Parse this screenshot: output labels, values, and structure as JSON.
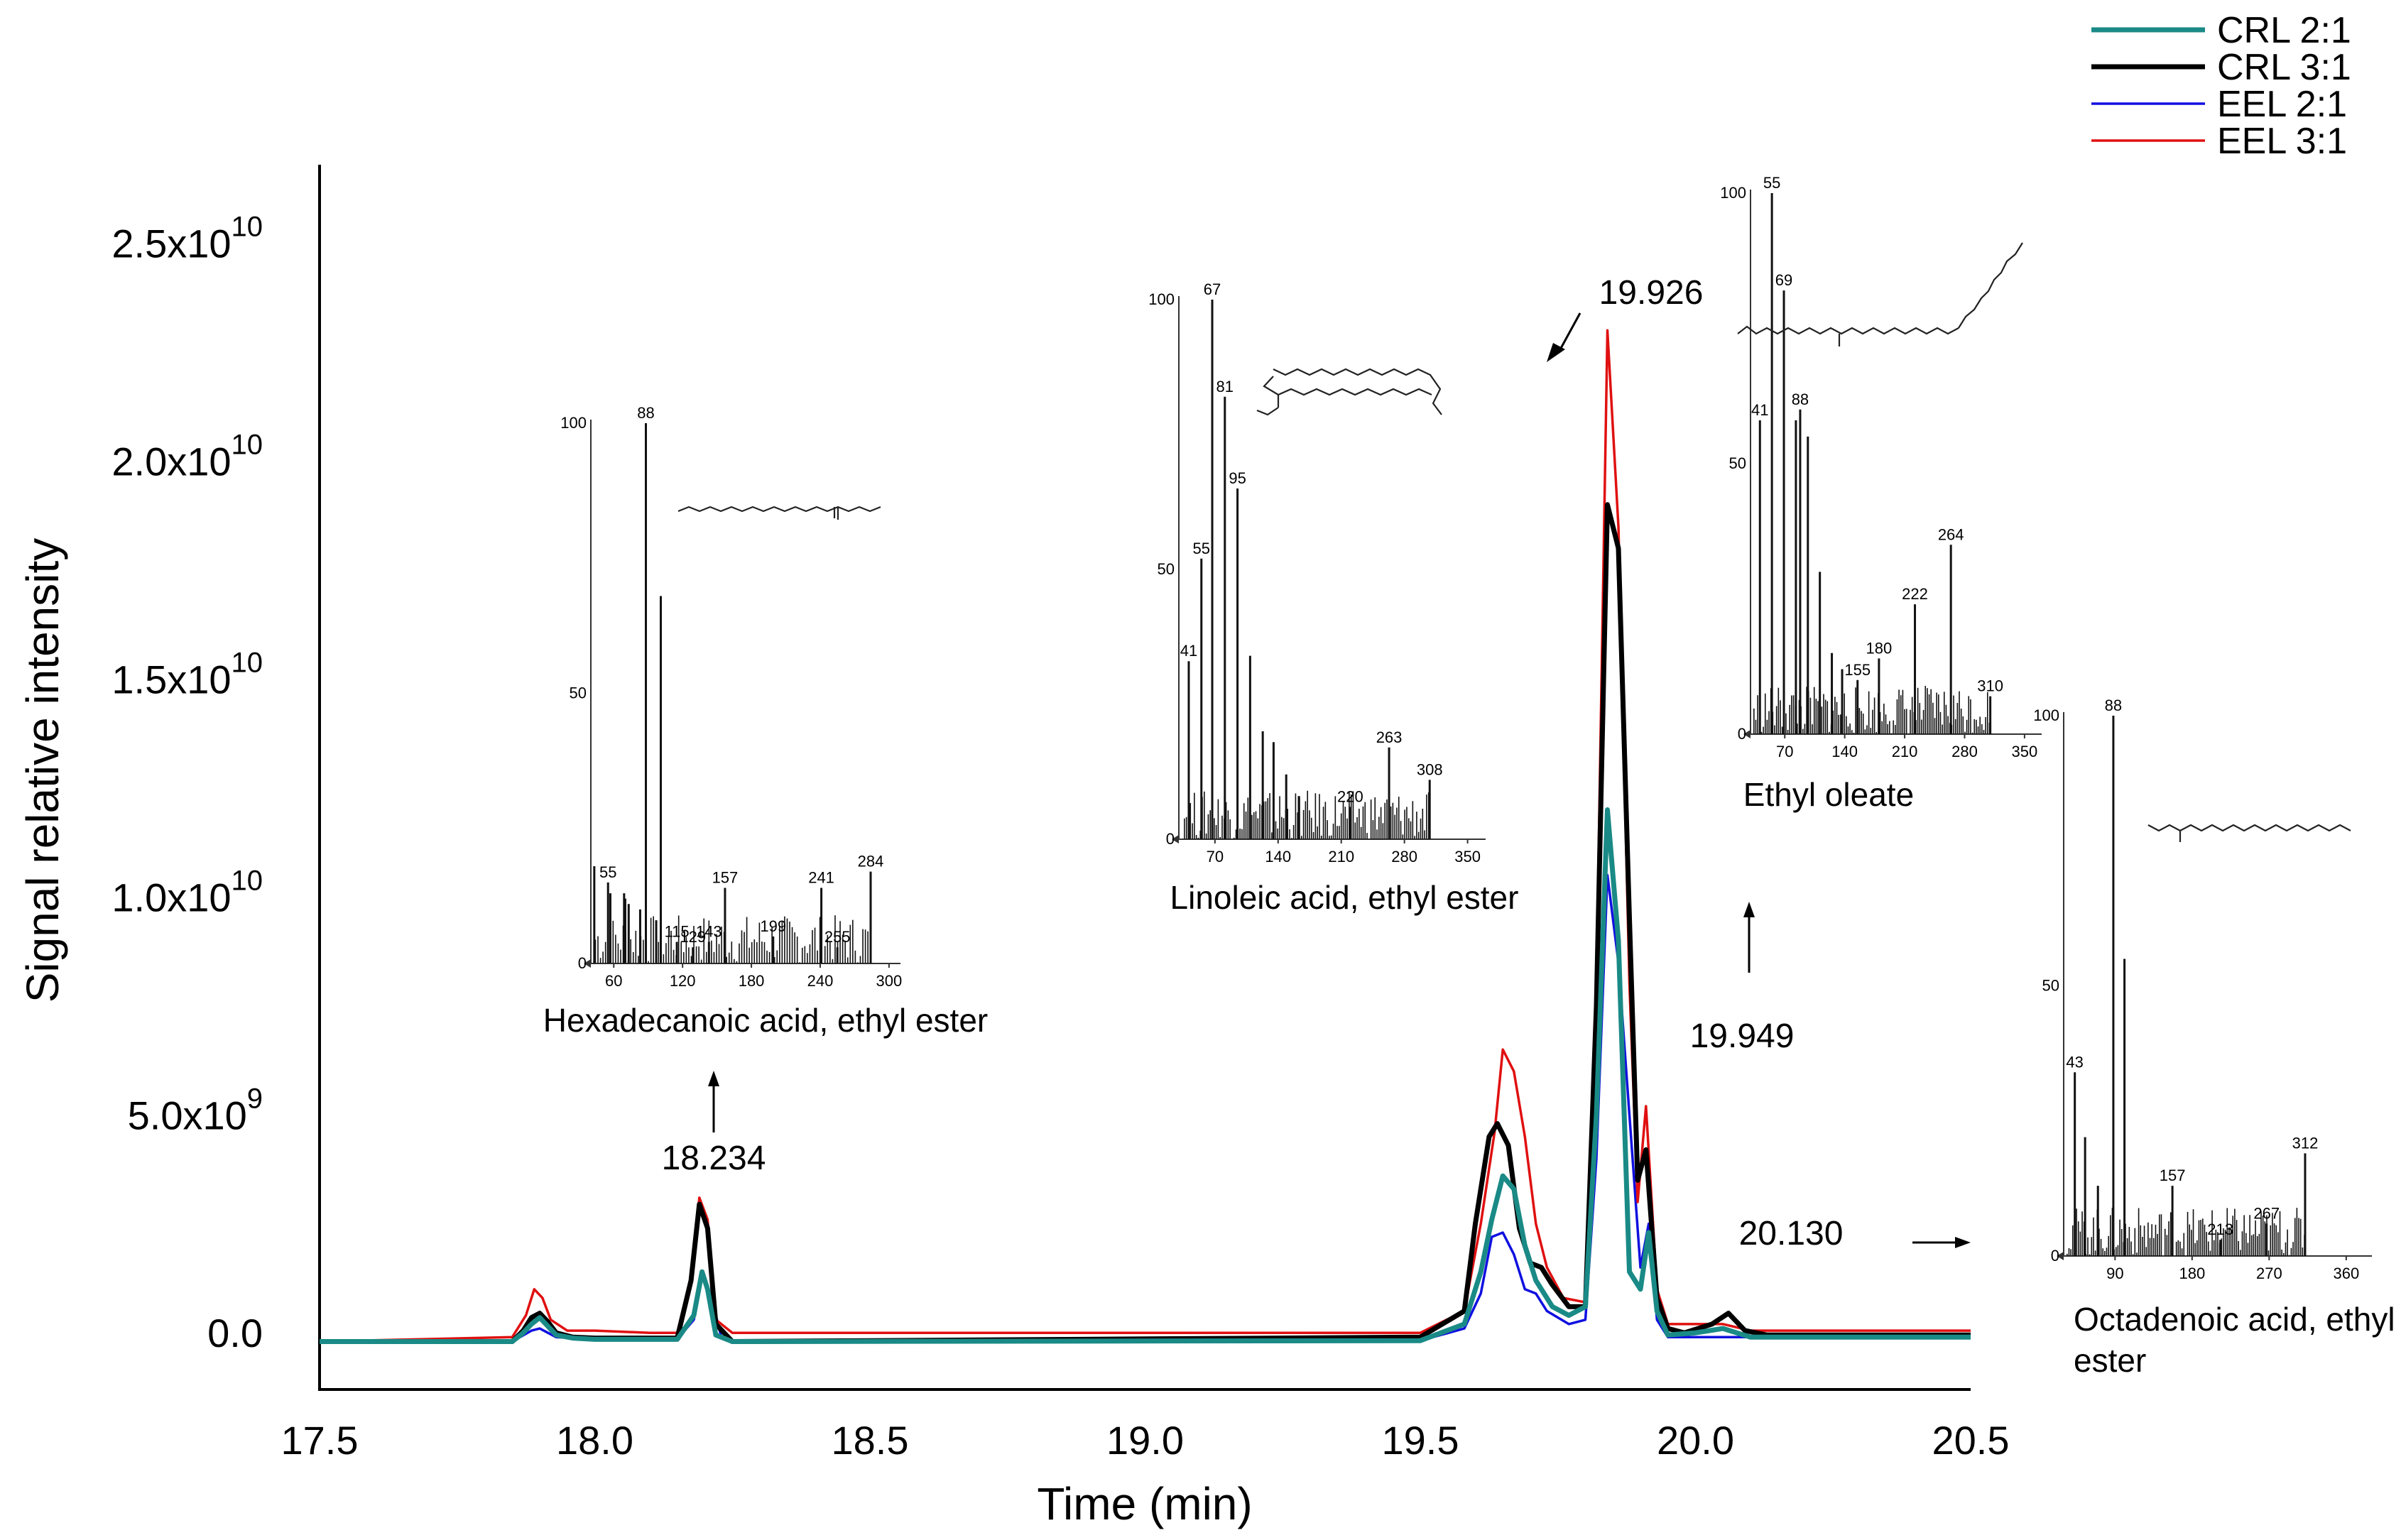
{
  "colors": {
    "crl21": "#1a8a86",
    "crl31": "#000000",
    "eel21": "#1010e0",
    "eel31": "#e01010"
  },
  "chart_data": {
    "type": "line",
    "title": "",
    "xlabel": "Time (min)",
    "ylabel": "Signal relative intensity",
    "xlim": [
      17.5,
      20.5
    ],
    "ylim": [
      -1300000000.0,
      26800000000.0
    ],
    "x_ticks": [
      {
        "v": 17.5,
        "label": "17.5"
      },
      {
        "v": 18.0,
        "label": "18.0"
      },
      {
        "v": 18.5,
        "label": "18.5"
      },
      {
        "v": 19.0,
        "label": "19.0"
      },
      {
        "v": 19.5,
        "label": "19.5"
      },
      {
        "v": 20.0,
        "label": "20.0"
      },
      {
        "v": 20.5,
        "label": "20.5"
      }
    ],
    "y_ticks": [
      {
        "v": 0,
        "base": "0.0",
        "exp": ""
      },
      {
        "v": 5000000000.0,
        "base": "5.0x10",
        "exp": "9"
      },
      {
        "v": 10000000000.0,
        "base": "1.0x10",
        "exp": "10"
      },
      {
        "v": 15000000000.0,
        "base": "1.5x10",
        "exp": "10"
      },
      {
        "v": 20000000000.0,
        "base": "2.0x10",
        "exp": "10"
      },
      {
        "v": 25000000000.0,
        "base": "2.5x10",
        "exp": "10"
      }
    ],
    "series": [
      {
        "name": "CRL 2:1",
        "color_key": "crl21",
        "width": 7,
        "points": [
          [
            17.5,
            -200000000.0
          ],
          [
            17.85,
            -200000000.0
          ],
          [
            17.87,
            0.0
          ],
          [
            17.885,
            200000000.0
          ],
          [
            17.9,
            350000000.0
          ],
          [
            17.915,
            150000000.0
          ],
          [
            17.93,
            -50000000.0
          ],
          [
            17.96,
            -120000000.0
          ],
          [
            18.0,
            -150000000.0
          ],
          [
            18.15,
            -150000000.0
          ],
          [
            18.18,
            400000000.0
          ],
          [
            18.195,
            1400000000.0
          ],
          [
            18.205,
            1000000000.0
          ],
          [
            18.22,
            -50000000.0
          ],
          [
            18.25,
            -200000000.0
          ],
          [
            19.5,
            -180000000.0
          ],
          [
            19.58,
            200000000.0
          ],
          [
            19.61,
            1400000000.0
          ],
          [
            19.63,
            2600000000.0
          ],
          [
            19.65,
            3600000000.0
          ],
          [
            19.67,
            3300000000.0
          ],
          [
            19.69,
            2000000000.0
          ],
          [
            19.71,
            1200000000.0
          ],
          [
            19.74,
            600000000.0
          ],
          [
            19.77,
            400000000.0
          ],
          [
            19.8,
            600000000.0
          ],
          [
            19.82,
            5000000000.0
          ],
          [
            19.84,
            12000000000.0
          ],
          [
            19.86,
            9000000000.0
          ],
          [
            19.88,
            1400000000.0
          ],
          [
            19.9,
            1000000000.0
          ],
          [
            19.915,
            2300000000.0
          ],
          [
            19.93,
            500000000.0
          ],
          [
            19.95,
            -50000000.0
          ],
          [
            20.0,
            0.0
          ],
          [
            20.05,
            100000000.0
          ],
          [
            20.1,
            -100000000.0
          ],
          [
            20.5,
            -100000000.0
          ]
        ]
      },
      {
        "name": "CRL 3:1",
        "color_key": "crl31",
        "width": 7,
        "points": [
          [
            17.5,
            -200000000.0
          ],
          [
            17.85,
            -200000000.0
          ],
          [
            17.87,
            50000000.0
          ],
          [
            17.885,
            350000000.0
          ],
          [
            17.9,
            450000000.0
          ],
          [
            17.915,
            250000000.0
          ],
          [
            17.93,
            0.0
          ],
          [
            17.96,
            -100000000.0
          ],
          [
            18.0,
            -120000000.0
          ],
          [
            18.15,
            -120000000.0
          ],
          [
            18.175,
            1200000000.0
          ],
          [
            18.19,
            2950000000.0
          ],
          [
            18.205,
            2400000000.0
          ],
          [
            18.22,
            200000000.0
          ],
          [
            18.25,
            -200000000.0
          ],
          [
            19.5,
            -100000000.0
          ],
          [
            19.58,
            500000000.0
          ],
          [
            19.6,
            2500000000.0
          ],
          [
            19.625,
            4500000000.0
          ],
          [
            19.64,
            4800000000.0
          ],
          [
            19.66,
            4300000000.0
          ],
          [
            19.68,
            2400000000.0
          ],
          [
            19.7,
            1600000000.0
          ],
          [
            19.72,
            1500000000.0
          ],
          [
            19.74,
            1100000000.0
          ],
          [
            19.77,
            600000000.0
          ],
          [
            19.8,
            600000000.0
          ],
          [
            19.82,
            7500000000.0
          ],
          [
            19.84,
            19000000000.0
          ],
          [
            19.86,
            18000000000.0
          ],
          [
            19.88,
            9500000000.0
          ],
          [
            19.895,
            3500000000.0
          ],
          [
            19.91,
            4200000000.0
          ],
          [
            19.93,
            800000000.0
          ],
          [
            19.95,
            100000000.0
          ],
          [
            19.98,
            0.0
          ],
          [
            20.03,
            200000000.0
          ],
          [
            20.06,
            450000000.0
          ],
          [
            20.09,
            50000000.0
          ],
          [
            20.13,
            -50000000.0
          ],
          [
            20.5,
            -50000000.0
          ]
        ]
      },
      {
        "name": "EEL 2:1",
        "color_key": "eel21",
        "width": 3.5,
        "points": [
          [
            17.5,
            -200000000.0
          ],
          [
            17.85,
            -200000000.0
          ],
          [
            17.885,
            50000000.0
          ],
          [
            17.9,
            100000000.0
          ],
          [
            17.93,
            -100000000.0
          ],
          [
            18.0,
            -150000000.0
          ],
          [
            18.15,
            -150000000.0
          ],
          [
            18.18,
            300000000.0
          ],
          [
            18.195,
            1300000000.0
          ],
          [
            18.21,
            900000000.0
          ],
          [
            18.23,
            -100000000.0
          ],
          [
            18.25,
            -200000000.0
          ],
          [
            19.5,
            -180000000.0
          ],
          [
            19.58,
            100000000.0
          ],
          [
            19.61,
            900000000.0
          ],
          [
            19.63,
            2200000000.0
          ],
          [
            19.65,
            2300000000.0
          ],
          [
            19.67,
            1800000000.0
          ],
          [
            19.69,
            1000000000.0
          ],
          [
            19.71,
            900000000.0
          ],
          [
            19.73,
            500000000.0
          ],
          [
            19.77,
            200000000.0
          ],
          [
            19.8,
            300000000.0
          ],
          [
            19.82,
            4000000000.0
          ],
          [
            19.84,
            10500000000.0
          ],
          [
            19.86,
            8500000000.0
          ],
          [
            19.88,
            5000000000.0
          ],
          [
            19.9,
            1500000000.0
          ],
          [
            19.915,
            2500000000.0
          ],
          [
            19.93,
            300000000.0
          ],
          [
            19.95,
            -100000000.0
          ],
          [
            20.5,
            -100000000.0
          ]
        ]
      },
      {
        "name": "EEL 3:1",
        "color_key": "eel31",
        "width": 3.5,
        "points": [
          [
            17.5,
            -200000000.0
          ],
          [
            17.85,
            -100000000.0
          ],
          [
            17.875,
            400000000.0
          ],
          [
            17.89,
            1000000000.0
          ],
          [
            17.905,
            800000000.0
          ],
          [
            17.92,
            300000000.0
          ],
          [
            17.95,
            50000000.0
          ],
          [
            18.0,
            50000000.0
          ],
          [
            18.1,
            0.0
          ],
          [
            18.15,
            0.0
          ],
          [
            18.175,
            1300000000.0
          ],
          [
            18.19,
            3100000000.0
          ],
          [
            18.205,
            2600000000.0
          ],
          [
            18.22,
            300000000.0
          ],
          [
            18.25,
            0.0
          ],
          [
            19.5,
            0.0
          ],
          [
            19.58,
            500000000.0
          ],
          [
            19.61,
            2500000000.0
          ],
          [
            19.635,
            4600000000.0
          ],
          [
            19.65,
            6500000000.0
          ],
          [
            19.67,
            6000000000.0
          ],
          [
            19.69,
            4500000000.0
          ],
          [
            19.71,
            2500000000.0
          ],
          [
            19.73,
            1500000000.0
          ],
          [
            19.76,
            800000000.0
          ],
          [
            19.8,
            700000000.0
          ],
          [
            19.82,
            8000000000.0
          ],
          [
            19.84,
            23000000000.0
          ],
          [
            19.86,
            18500000000.0
          ],
          [
            19.88,
            8000000000.0
          ],
          [
            19.895,
            3000000000.0
          ],
          [
            19.91,
            5200000000.0
          ],
          [
            19.93,
            1000000000.0
          ],
          [
            19.95,
            200000000.0
          ],
          [
            20.0,
            200000000.0
          ],
          [
            20.05,
            200000000.0
          ],
          [
            20.1,
            50000000.0
          ],
          [
            20.5,
            50000000.0
          ]
        ]
      }
    ],
    "annotations": [
      {
        "label": "18.234"
      },
      {
        "label": "19.926"
      },
      {
        "label": "19.949"
      },
      {
        "label": "20.130"
      }
    ]
  },
  "legend": [
    {
      "label": "CRL 2:1",
      "color_key": "crl21"
    },
    {
      "label": "CRL 3:1",
      "color_key": "crl31"
    },
    {
      "label": "EEL 2:1",
      "color_key": "eel21"
    },
    {
      "label": "EEL 3:1",
      "color_key": "eel31"
    }
  ],
  "insets": [
    {
      "id": "hexa",
      "caption": [
        "Hexadecanoic acid, ethyl ester"
      ],
      "y_labels": [
        "100",
        "50",
        "0"
      ],
      "x_min": 40,
      "x_max": 310,
      "x_ticks": [
        "60",
        "120",
        "180",
        "240",
        "300"
      ],
      "peaks": [
        [
          88,
          100
        ],
        [
          101,
          68
        ],
        [
          43,
          18
        ],
        [
          55,
          15
        ],
        [
          57,
          13
        ],
        [
          69,
          13
        ],
        [
          70,
          12
        ],
        [
          73,
          11
        ],
        [
          83,
          10
        ],
        [
          97,
          8
        ],
        [
          115,
          4
        ],
        [
          129,
          3
        ],
        [
          143,
          4
        ],
        [
          157,
          14
        ],
        [
          199,
          5
        ],
        [
          241,
          14
        ],
        [
          255,
          3
        ],
        [
          284,
          17
        ]
      ],
      "labels": [
        [
          55,
          "55"
        ],
        [
          88,
          "88"
        ],
        [
          115,
          "115"
        ],
        [
          129,
          "129"
        ],
        [
          143,
          "143"
        ],
        [
          157,
          "157"
        ],
        [
          199,
          "199"
        ],
        [
          241,
          "241"
        ],
        [
          255,
          "255"
        ],
        [
          284,
          "284"
        ]
      ]
    },
    {
      "id": "lino",
      "caption": [
        "Linoleic acid, ethyl ester"
      ],
      "y_labels": [
        "100",
        "50",
        "0"
      ],
      "x_min": 30,
      "x_max": 370,
      "x_ticks": [
        "70",
        "140",
        "210",
        "280",
        "350"
      ],
      "peaks": [
        [
          41,
          33
        ],
        [
          55,
          52
        ],
        [
          67,
          100
        ],
        [
          81,
          82
        ],
        [
          95,
          65
        ],
        [
          109,
          34
        ],
        [
          123,
          20
        ],
        [
          135,
          18
        ],
        [
          149,
          12
        ],
        [
          163,
          8
        ],
        [
          220,
          6
        ],
        [
          263,
          17
        ],
        [
          308,
          11
        ]
      ],
      "labels": [
        [
          41,
          "41"
        ],
        [
          55,
          "55"
        ],
        [
          67,
          "67"
        ],
        [
          81,
          "81"
        ],
        [
          95,
          "95"
        ],
        [
          220,
          "220"
        ],
        [
          263,
          "263"
        ],
        [
          308,
          "308"
        ]
      ]
    },
    {
      "id": "oleate",
      "caption": [
        "Ethyl oleate"
      ],
      "y_labels": [
        "100",
        "50",
        "0"
      ],
      "x_min": 30,
      "x_max": 370,
      "x_ticks": [
        "70",
        "140",
        "210",
        "280",
        "350"
      ],
      "peaks": [
        [
          41,
          58
        ],
        [
          55,
          100
        ],
        [
          69,
          82
        ],
        [
          83,
          58
        ],
        [
          88,
          60
        ],
        [
          97,
          55
        ],
        [
          111,
          30
        ],
        [
          125,
          15
        ],
        [
          137,
          12
        ],
        [
          155,
          10
        ],
        [
          180,
          14
        ],
        [
          222,
          24
        ],
        [
          264,
          35
        ],
        [
          310,
          7
        ]
      ],
      "labels": [
        [
          41,
          "41"
        ],
        [
          55,
          "55"
        ],
        [
          69,
          "69"
        ],
        [
          88,
          "88"
        ],
        [
          155,
          "155"
        ],
        [
          180,
          "180"
        ],
        [
          222,
          "222"
        ],
        [
          264,
          "264"
        ],
        [
          310,
          "310"
        ]
      ]
    },
    {
      "id": "octa",
      "caption": [
        "Octadenoic acid, ethyl",
        "ester"
      ],
      "y_labels": [
        "100",
        "50",
        "0"
      ],
      "x_min": 30,
      "x_max": 390,
      "x_ticks": [
        "90",
        "180",
        "270",
        "360"
      ],
      "peaks": [
        [
          43,
          34
        ],
        [
          55,
          22
        ],
        [
          70,
          13
        ],
        [
          88,
          100
        ],
        [
          101,
          55
        ],
        [
          157,
          13
        ],
        [
          213,
          3
        ],
        [
          267,
          6
        ],
        [
          312,
          19
        ]
      ],
      "labels": [
        [
          43,
          "43"
        ],
        [
          88,
          "88"
        ],
        [
          157,
          "157"
        ],
        [
          213,
          "213"
        ],
        [
          267,
          "267"
        ],
        [
          312,
          "312"
        ]
      ]
    }
  ]
}
